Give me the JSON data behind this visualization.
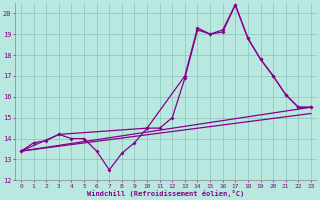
{
  "bg_color": "#b8e8e0",
  "grid_color": "#90c8c0",
  "line_color": "#880088",
  "xlim": [
    -0.5,
    23.5
  ],
  "ylim": [
    12,
    20.5
  ],
  "yticks": [
    12,
    13,
    14,
    15,
    16,
    17,
    18,
    19,
    20
  ],
  "xticks": [
    0,
    1,
    2,
    3,
    4,
    5,
    6,
    7,
    8,
    9,
    10,
    11,
    12,
    13,
    14,
    15,
    16,
    17,
    18,
    19,
    20,
    21,
    22,
    23
  ],
  "xlabel": "Windchill (Refroidissement éolien,°C)",
  "line1_x": [
    0,
    1,
    2,
    3,
    4,
    5,
    6,
    7,
    8,
    9,
    10,
    11,
    12,
    13,
    14,
    15,
    16,
    17,
    18,
    19,
    20,
    21,
    22,
    23
  ],
  "line1_y": [
    13.4,
    13.8,
    13.9,
    14.2,
    14.0,
    14.0,
    13.4,
    12.5,
    13.3,
    13.8,
    14.5,
    14.5,
    15.0,
    16.9,
    19.2,
    19.0,
    19.1,
    20.4,
    18.8,
    17.8,
    17.0,
    16.1,
    15.5,
    15.5
  ],
  "line2_x": [
    0,
    3,
    10,
    13,
    14,
    15,
    16,
    17,
    18,
    19,
    20,
    21,
    22,
    23
  ],
  "line2_y": [
    13.4,
    14.2,
    14.5,
    17.0,
    19.3,
    19.0,
    19.2,
    20.4,
    18.8,
    17.8,
    17.0,
    16.1,
    15.5,
    15.5
  ],
  "line3_x": [
    0,
    23
  ],
  "line3_y": [
    13.4,
    15.5
  ],
  "line4_x": [
    0,
    23
  ],
  "line4_y": [
    13.4,
    15.2
  ]
}
